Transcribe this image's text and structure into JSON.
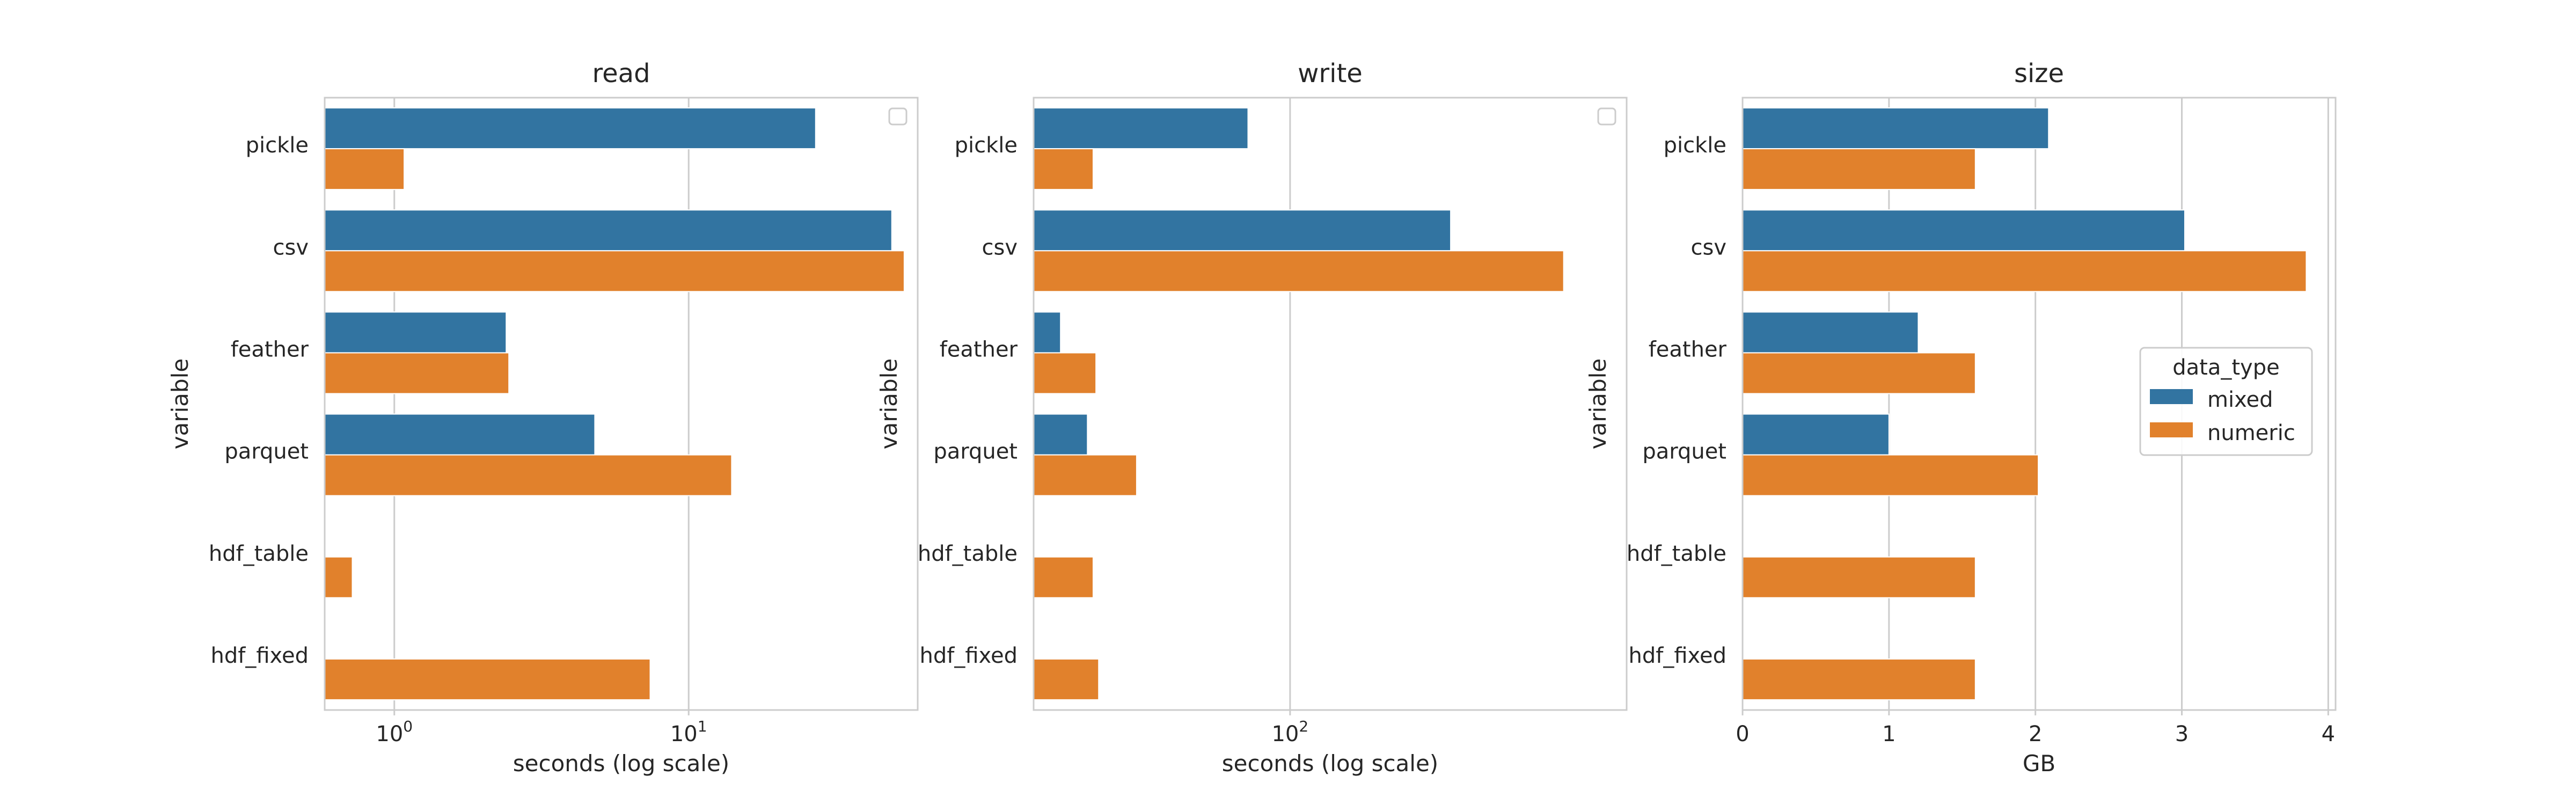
{
  "chart_data": [
    {
      "type": "bar",
      "orientation": "horizontal",
      "title": "read",
      "xlabel": "seconds (log scale)",
      "ylabel": "variable",
      "xscale": "log",
      "xlim": [
        0.58,
        60
      ],
      "xticks": [
        {
          "value": 1,
          "base": "10",
          "exp": "0"
        },
        {
          "value": 10,
          "base": "10",
          "exp": "1"
        }
      ],
      "categories": [
        "pickle",
        "csv",
        "feather",
        "parquet",
        "hdf_table",
        "hdf_fixed"
      ],
      "series": [
        {
          "name": "mixed",
          "color": "#3274a1",
          "values": [
            27,
            49,
            2.4,
            4.8,
            null,
            null
          ]
        },
        {
          "name": "numeric",
          "color": "#e1812c",
          "values": [
            1.08,
            54,
            2.45,
            14,
            0.72,
            7.4
          ]
        }
      ],
      "grid": true,
      "legend": {
        "placement": "upper right",
        "empty": true
      }
    },
    {
      "type": "bar",
      "orientation": "horizontal",
      "title": "write",
      "xlabel": "seconds (log scale)",
      "ylabel": "variable",
      "xscale": "log",
      "xlim": [
        17.3,
        1000
      ],
      "xticks": [
        {
          "value": 100,
          "base": "10",
          "exp": "2"
        }
      ],
      "categories": [
        "pickle",
        "csv",
        "feather",
        "parquet",
        "hdf_table",
        "hdf_fixed"
      ],
      "series": [
        {
          "name": "mixed",
          "color": "#3274a1",
          "values": [
            75,
            300,
            20.8,
            25,
            null,
            null
          ]
        },
        {
          "name": "numeric",
          "color": "#e1812c",
          "values": [
            26,
            650,
            26.5,
            35,
            26,
            27
          ]
        }
      ],
      "grid": true,
      "legend": {
        "placement": "upper right",
        "empty": true
      }
    },
    {
      "type": "bar",
      "orientation": "horizontal",
      "title": "size",
      "xlabel": "GB",
      "ylabel": "variable",
      "xscale": "linear",
      "xlim": [
        0,
        4.05
      ],
      "xticks": [
        {
          "value": 0,
          "label": "0"
        },
        {
          "value": 1,
          "label": "1"
        },
        {
          "value": 2,
          "label": "2"
        },
        {
          "value": 3,
          "label": "3"
        },
        {
          "value": 4,
          "label": "4"
        }
      ],
      "categories": [
        "pickle",
        "csv",
        "feather",
        "parquet",
        "hdf_table",
        "hdf_fixed"
      ],
      "series": [
        {
          "name": "mixed",
          "color": "#3274a1",
          "values": [
            2.09,
            3.02,
            1.2,
            1.0,
            null,
            null
          ]
        },
        {
          "name": "numeric",
          "color": "#e1812c",
          "values": [
            1.59,
            3.85,
            1.59,
            2.02,
            1.59,
            1.59
          ]
        }
      ],
      "grid": true,
      "legend": {
        "placement": "center right",
        "title": "data_type",
        "entries": [
          {
            "label": "mixed",
            "color": "#3274a1"
          },
          {
            "label": "numeric",
            "color": "#e1812c"
          }
        ]
      }
    }
  ]
}
